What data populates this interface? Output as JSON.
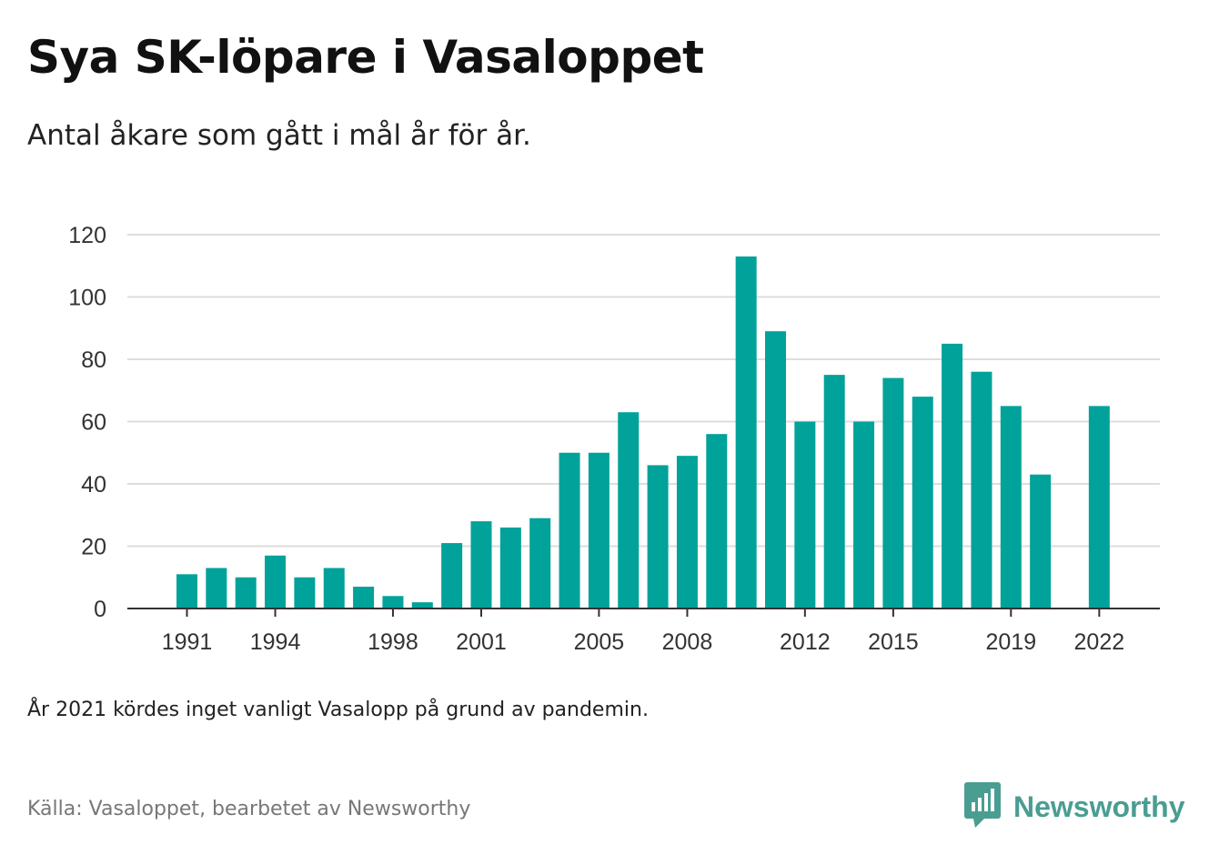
{
  "title": "Sya SK-löpare i Vasaloppet",
  "subtitle": "Antal åkare som gått i mål år för år.",
  "note": "År 2021 kördes inget vanligt Vasalopp på grund av pandemin.",
  "source": "Källa: Vasaloppet, bearbetet av Newsworthy",
  "logo": {
    "text": "Newsworthy",
    "icon": "bar-chart-speech-bubble-icon"
  },
  "colors": {
    "bar": "#00a29a",
    "grid": "#dddddd",
    "axis": "#333333",
    "brand": "#4a9d91"
  },
  "chart_data": {
    "type": "bar",
    "title": "Sya SK-löpare i Vasaloppet",
    "subtitle": "Antal åkare som gått i mål år för år.",
    "xlabel": "",
    "ylabel": "",
    "ylim": [
      0,
      120
    ],
    "yticks": [
      0,
      20,
      40,
      60,
      80,
      100,
      120
    ],
    "xticks": [
      1991,
      1994,
      1998,
      2001,
      2005,
      2008,
      2012,
      2015,
      2019,
      2022
    ],
    "grid": true,
    "categories": [
      1991,
      1992,
      1993,
      1994,
      1995,
      1996,
      1997,
      1998,
      1999,
      2000,
      2001,
      2002,
      2003,
      2004,
      2005,
      2006,
      2007,
      2008,
      2009,
      2010,
      2011,
      2012,
      2013,
      2014,
      2015,
      2016,
      2017,
      2018,
      2019,
      2020,
      2021,
      2022
    ],
    "values": [
      11,
      13,
      10,
      17,
      10,
      13,
      7,
      4,
      2,
      21,
      28,
      26,
      29,
      50,
      50,
      63,
      46,
      49,
      56,
      113,
      89,
      60,
      75,
      60,
      74,
      68,
      85,
      76,
      65,
      43,
      null,
      65
    ]
  }
}
